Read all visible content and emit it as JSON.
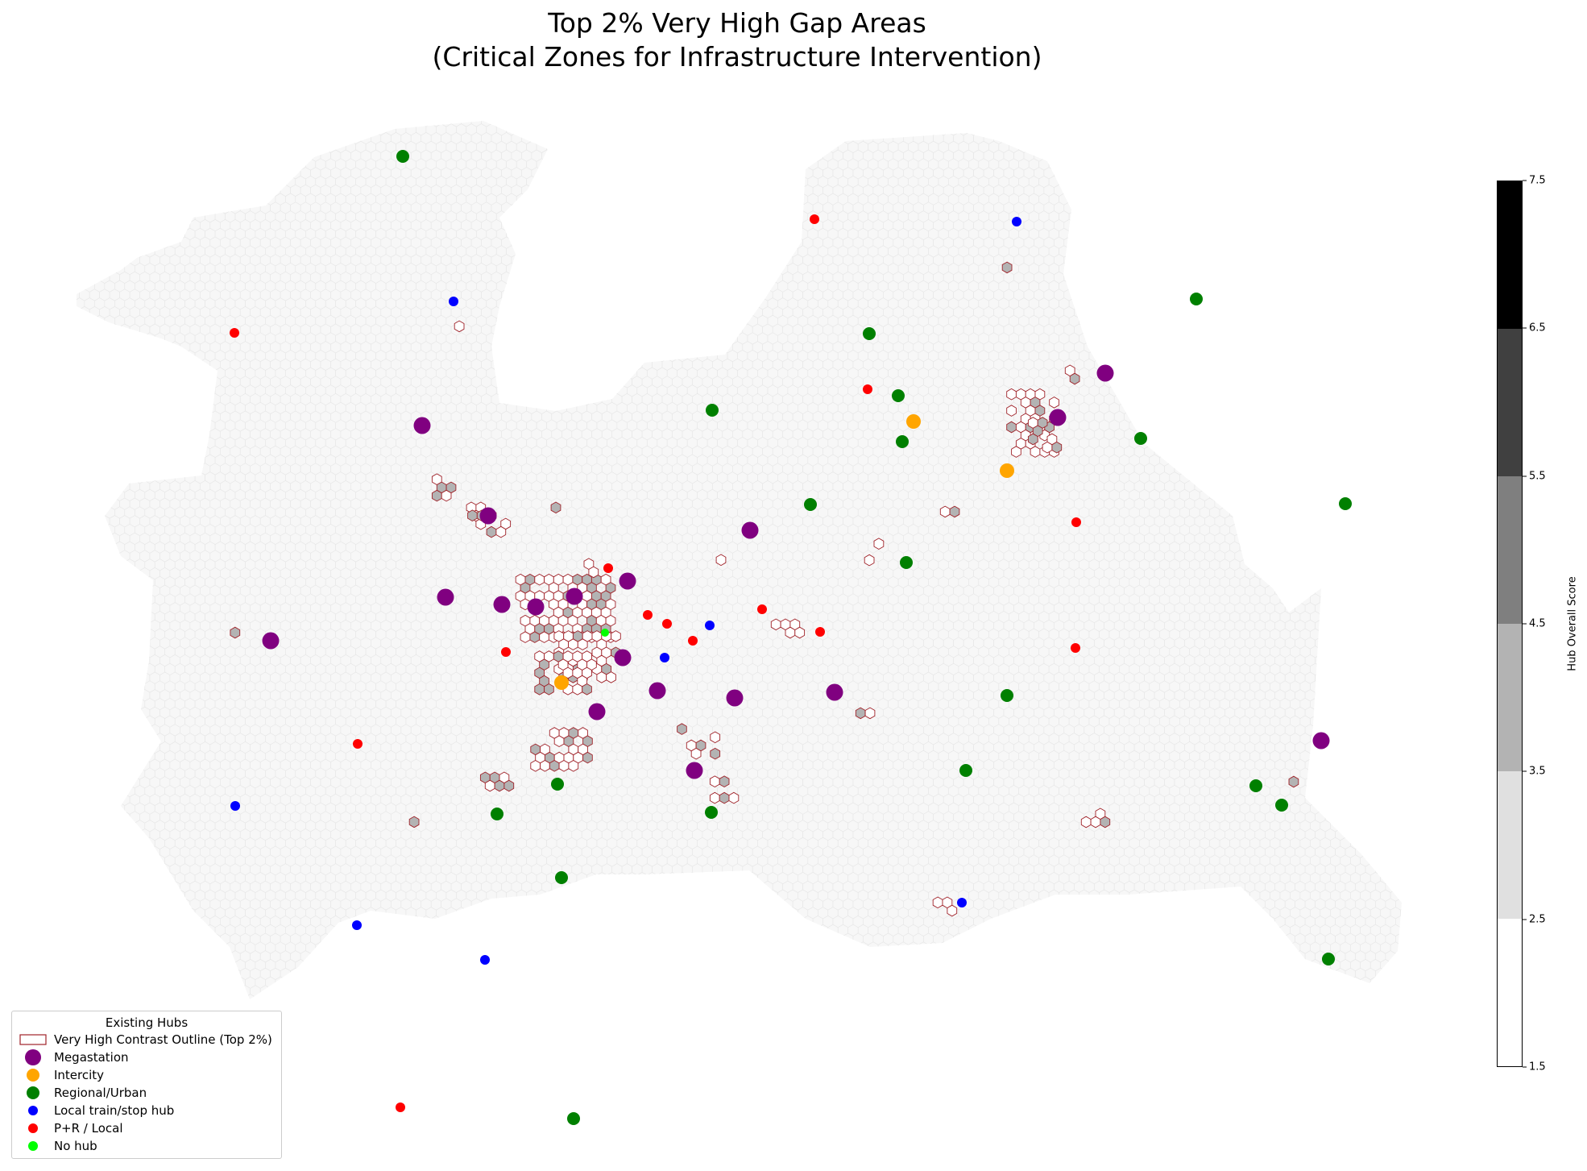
{
  "title": "Top 2% Very High Gap Areas\n(Critical Zones for Infrastructure Intervention)",
  "legend": {
    "title": "Existing Hubs",
    "items": [
      {
        "label": "Very High Contrast Outline (Top 2%)",
        "kind": "hex-outline"
      },
      {
        "label": "Megastation",
        "kind": "dot",
        "color": "#800080"
      },
      {
        "label": "Intercity",
        "kind": "dot",
        "color": "#ffa500"
      },
      {
        "label": "Regional/Urban",
        "kind": "dot",
        "color": "#008000"
      },
      {
        "label": "Local train/stop hub",
        "kind": "dot",
        "color": "#0000ff"
      },
      {
        "label": "P+R / Local",
        "kind": "dot",
        "color": "#ff0000"
      },
      {
        "label": "No hub",
        "kind": "dot",
        "color": "#00ff00"
      }
    ]
  },
  "colorbar": {
    "label": "Hub Overall Score",
    "ticks": [
      "1.5",
      "2.5",
      "3.5",
      "4.5",
      "5.5",
      "6.5",
      "7.5"
    ],
    "colors": [
      "#ffffff",
      "#e0e0e0",
      "#b3b3b3",
      "#7f7f7f",
      "#404040",
      "#000000"
    ]
  },
  "colors": {
    "background_hex_fill": "#f7f7f7",
    "background_hex_stroke": "#e6e6e6",
    "gap_outline": "#a0232a",
    "gap_fill_light": "#ffffff",
    "gap_fill_mid": "#b3b3b3"
  }
}
